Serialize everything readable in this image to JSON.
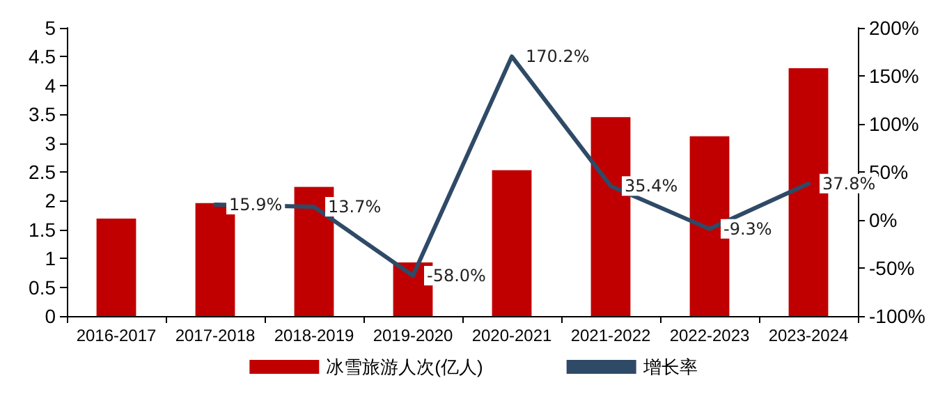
{
  "chart_data": {
    "type": "bar",
    "categories": [
      "2016-2017",
      "2017-2018",
      "2018-2019",
      "2019-2020",
      "2020-2021",
      "2021-2022",
      "2022-2023",
      "2023-2024"
    ],
    "series": [
      {
        "name": "冰雪旅游人次(亿人)",
        "color": "#c00000",
        "values": [
          1.69,
          1.96,
          2.24,
          0.93,
          2.53,
          3.45,
          3.12,
          4.3
        ]
      },
      {
        "name": "增长率",
        "type": "line",
        "axis": "y2",
        "color": "#2f4a66",
        "values": [
          null,
          15.9,
          13.7,
          -58.0,
          170.2,
          35.4,
          -9.3,
          37.8
        ],
        "value_labels": [
          null,
          "15.9%",
          "13.7%",
          "-58.0%",
          "170.2%",
          "35.4%",
          "-9.3%",
          "37.8%"
        ]
      }
    ],
    "ylim": [
      0,
      5
    ],
    "yticks": [
      0,
      0.5,
      1,
      1.5,
      2,
      2.5,
      3,
      3.5,
      4,
      4.5,
      5
    ],
    "y2lim": [
      -100,
      200
    ],
    "y2ticks": [
      {
        "value": -100,
        "label": "-100%"
      },
      {
        "value": -50,
        "label": "-50%"
      },
      {
        "value": 0,
        "label": "0%"
      },
      {
        "value": 50,
        "label": "50%"
      },
      {
        "value": 100,
        "label": "100%"
      },
      {
        "value": 150,
        "label": "150%"
      },
      {
        "value": 200,
        "label": "200%"
      }
    ],
    "grid": false,
    "legend": "bottom",
    "marker": "none",
    "line_style": "solid"
  }
}
